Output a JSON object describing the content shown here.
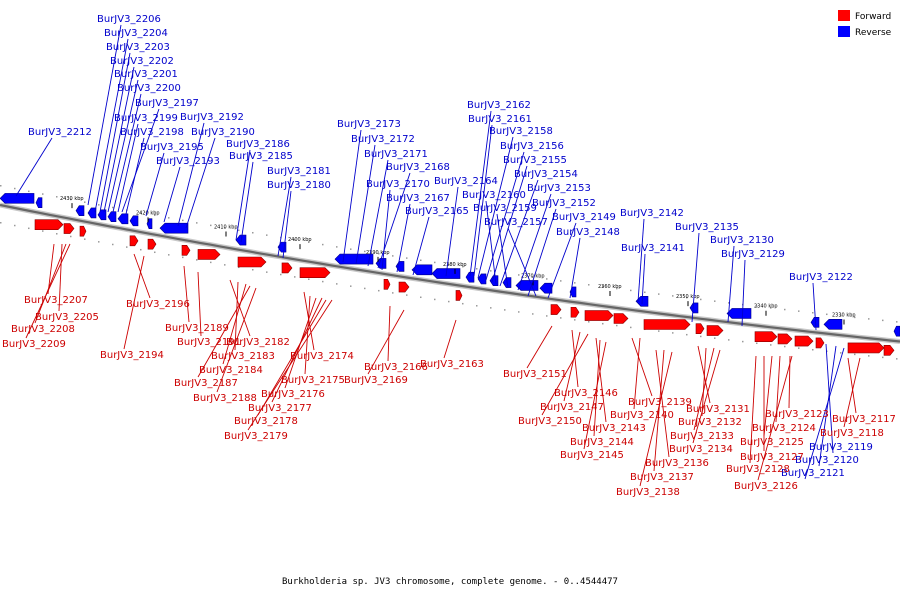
{
  "legend": {
    "forward_label": "Forward",
    "reverse_label": "Reverse",
    "forward_color": "#ff0000",
    "reverse_color": "#0000ff"
  },
  "caption": "Burkholderia sp. JV3 chromosome, complete genome. - 0..4544477",
  "ticks": [
    "2430 kbp",
    "2420 kbp",
    "2410 kbp",
    "2400 kbp",
    "2390 kbp",
    "2380 kbp",
    "2370 kbp",
    "2360 kbp",
    "2350 kbp",
    "2340 kbp",
    "2330 kbp"
  ],
  "reverse_genes": [
    "BurJV3_2206",
    "BurJV3_2204",
    "BurJV3_2203",
    "BurJV3_2202",
    "BurJV3_2201",
    "BurJV3_2200",
    "BurJV3_2197",
    "BurJV3_2199",
    "BurJV3_2198",
    "BurJV3_2195",
    "BurJV3_2193",
    "BurJV3_2192",
    "BurJV3_2190",
    "BurJV3_2186",
    "BurJV3_2185",
    "BurJV3_2181",
    "BurJV3_2180",
    "BurJV3_2212",
    "BurJV3_2173",
    "BurJV3_2172",
    "BurJV3_2171",
    "BurJV3_2168",
    "BurJV3_2170",
    "BurJV3_2167",
    "BurJV3_2165",
    "BurJV3_2164",
    "BurJV3_2162",
    "BurJV3_2161",
    "BurJV3_2158",
    "BurJV3_2156",
    "BurJV3_2155",
    "BurJV3_2154",
    "BurJV3_2153",
    "BurJV3_2160",
    "BurJV3_2159",
    "BurJV3_2152",
    "BurJV3_2157",
    "BurJV3_2149",
    "BurJV3_2148",
    "BurJV3_2142",
    "BurJV3_2141",
    "BurJV3_2135",
    "BurJV3_2130",
    "BurJV3_2129",
    "BurJV3_2122",
    "BurJV3_2119",
    "BurJV3_2120",
    "BurJV3_2121"
  ],
  "forward_genes": [
    "BurJV3_2207",
    "BurJV3_2205",
    "BurJV3_2208",
    "BurJV3_2209",
    "BurJV3_2196",
    "BurJV3_2194",
    "BurJV3_2189",
    "BurJV3_2191",
    "BurJV3_2182",
    "BurJV3_2183",
    "BurJV3_2184",
    "BurJV3_2187",
    "BurJV3_2188",
    "BurJV3_2174",
    "BurJV3_2175",
    "BurJV3_2176",
    "BurJV3_2177",
    "BurJV3_2178",
    "BurJV3_2179",
    "BurJV3_2166",
    "BurJV3_2169",
    "BurJV3_2163",
    "BurJV3_2151",
    "BurJV3_2146",
    "BurJV3_2147",
    "BurJV3_2150",
    "BurJV3_2139",
    "BurJV3_2140",
    "BurJV3_2143",
    "BurJV3_2144",
    "BurJV3_2145",
    "BurJV3_2131",
    "BurJV3_2132",
    "BurJV3_2133",
    "BurJV3_2134",
    "BurJV3_2136",
    "BurJV3_2137",
    "BurJV3_2138",
    "BurJV3_2123",
    "BurJV3_2124",
    "BurJV3_2125",
    "BurJV3_2127",
    "BurJV3_2128",
    "BurJV3_2126",
    "BurJV3_2117",
    "BurJV3_2118"
  ]
}
